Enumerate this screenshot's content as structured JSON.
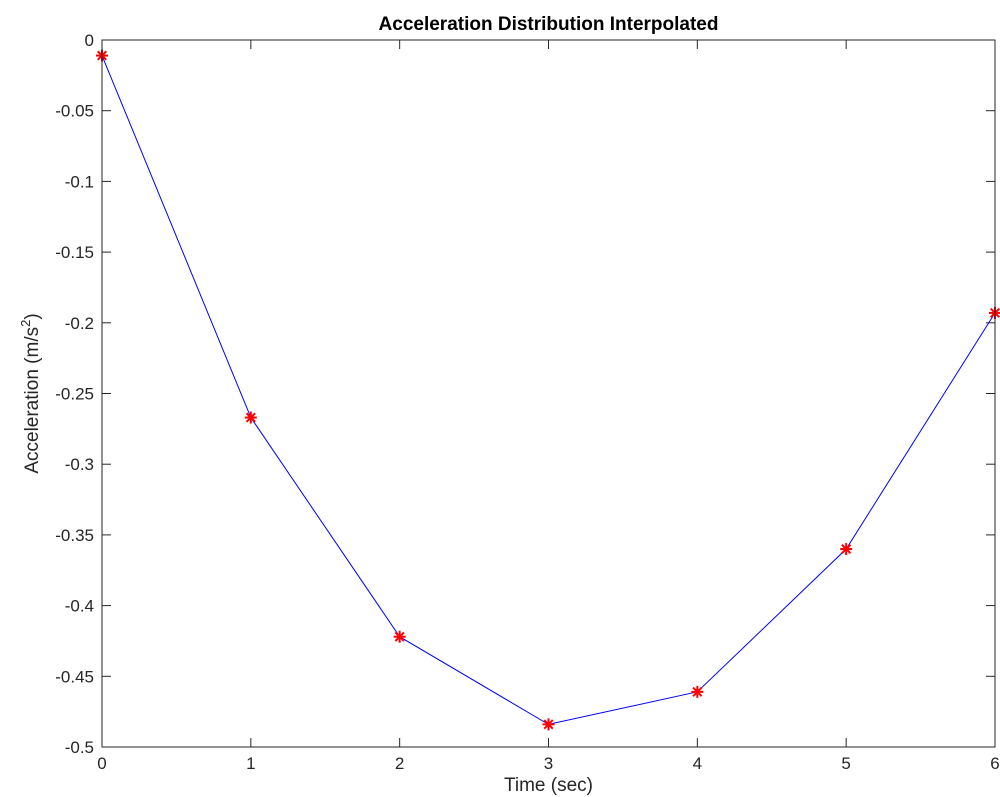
{
  "chart_data": {
    "type": "line",
    "title": "Acceleration Distribution Interpolated",
    "xlabel": "Time (sec)",
    "ylabel_main": "Acceleration (m/s",
    "ylabel_sup": "2",
    "ylabel_close": ")",
    "xlim": [
      0,
      6
    ],
    "ylim": [
      -0.5,
      0
    ],
    "xticks": [
      0,
      1,
      2,
      3,
      4,
      5,
      6
    ],
    "xtick_labels": [
      "0",
      "1",
      "2",
      "3",
      "4",
      "5",
      "6"
    ],
    "yticks": [
      0,
      -0.05,
      -0.1,
      -0.15,
      -0.2,
      -0.25,
      -0.3,
      -0.35,
      -0.4,
      -0.45,
      -0.5
    ],
    "ytick_labels": [
      "0",
      "-0.05",
      "-0.1",
      "-0.15",
      "-0.2",
      "-0.25",
      "-0.3",
      "-0.35",
      "-0.4",
      "-0.45",
      "-0.5"
    ],
    "grid": false,
    "series": [
      {
        "x": [
          0,
          1,
          2,
          3,
          4,
          5,
          6
        ],
        "values": [
          -0.011,
          -0.267,
          -0.422,
          -0.484,
          -0.461,
          -0.36,
          -0.193
        ],
        "line_color": "#0000ff",
        "marker": "asterisk",
        "marker_color": "#ff0000"
      }
    ]
  }
}
